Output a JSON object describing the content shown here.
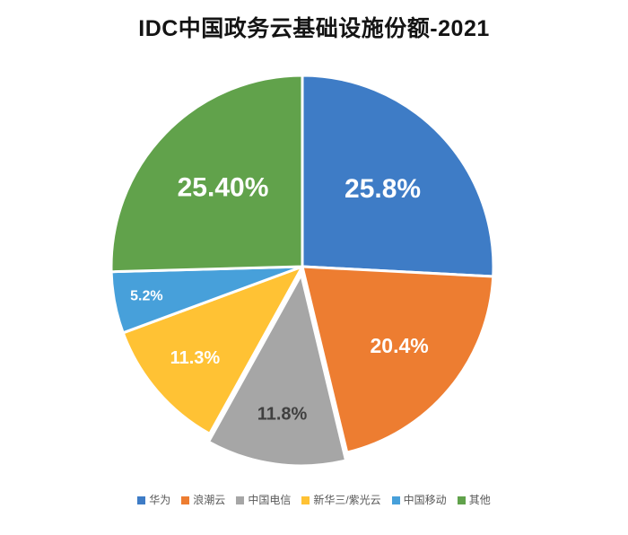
{
  "title": "IDC中国政务云基础设施份额-2021",
  "chart_data": {
    "type": "pie",
    "title": "IDC中国政务云基础设施份额-2021",
    "start_angle_deg": -90,
    "direction": "clockwise",
    "legend_position": "bottom",
    "background_color": "#ffffff",
    "slices": [
      {
        "label": "华为",
        "value": 25.8,
        "display": "25.8%",
        "color": "#3e7cc6",
        "label_color": "#ffffff"
      },
      {
        "label": "浪潮云",
        "value": 20.4,
        "display": "20.4%",
        "color": "#ed7d31",
        "label_color": "#ffffff"
      },
      {
        "label": "中国电信",
        "value": 11.8,
        "display": "11.8%",
        "color": "#a6a6a6",
        "label_color": "#404040",
        "exploded": true
      },
      {
        "label": "新华三/紫光云",
        "value": 11.3,
        "display": "11.3%",
        "color": "#ffc234",
        "label_color": "#ffffff"
      },
      {
        "label": "中国移动",
        "value": 5.2,
        "display": "5.2%",
        "color": "#47a0da",
        "label_color": "#ffffff"
      },
      {
        "label": "其他",
        "value": 25.4,
        "display": "25.40%",
        "color": "#61a24b",
        "label_color": "#ffffff"
      }
    ]
  }
}
